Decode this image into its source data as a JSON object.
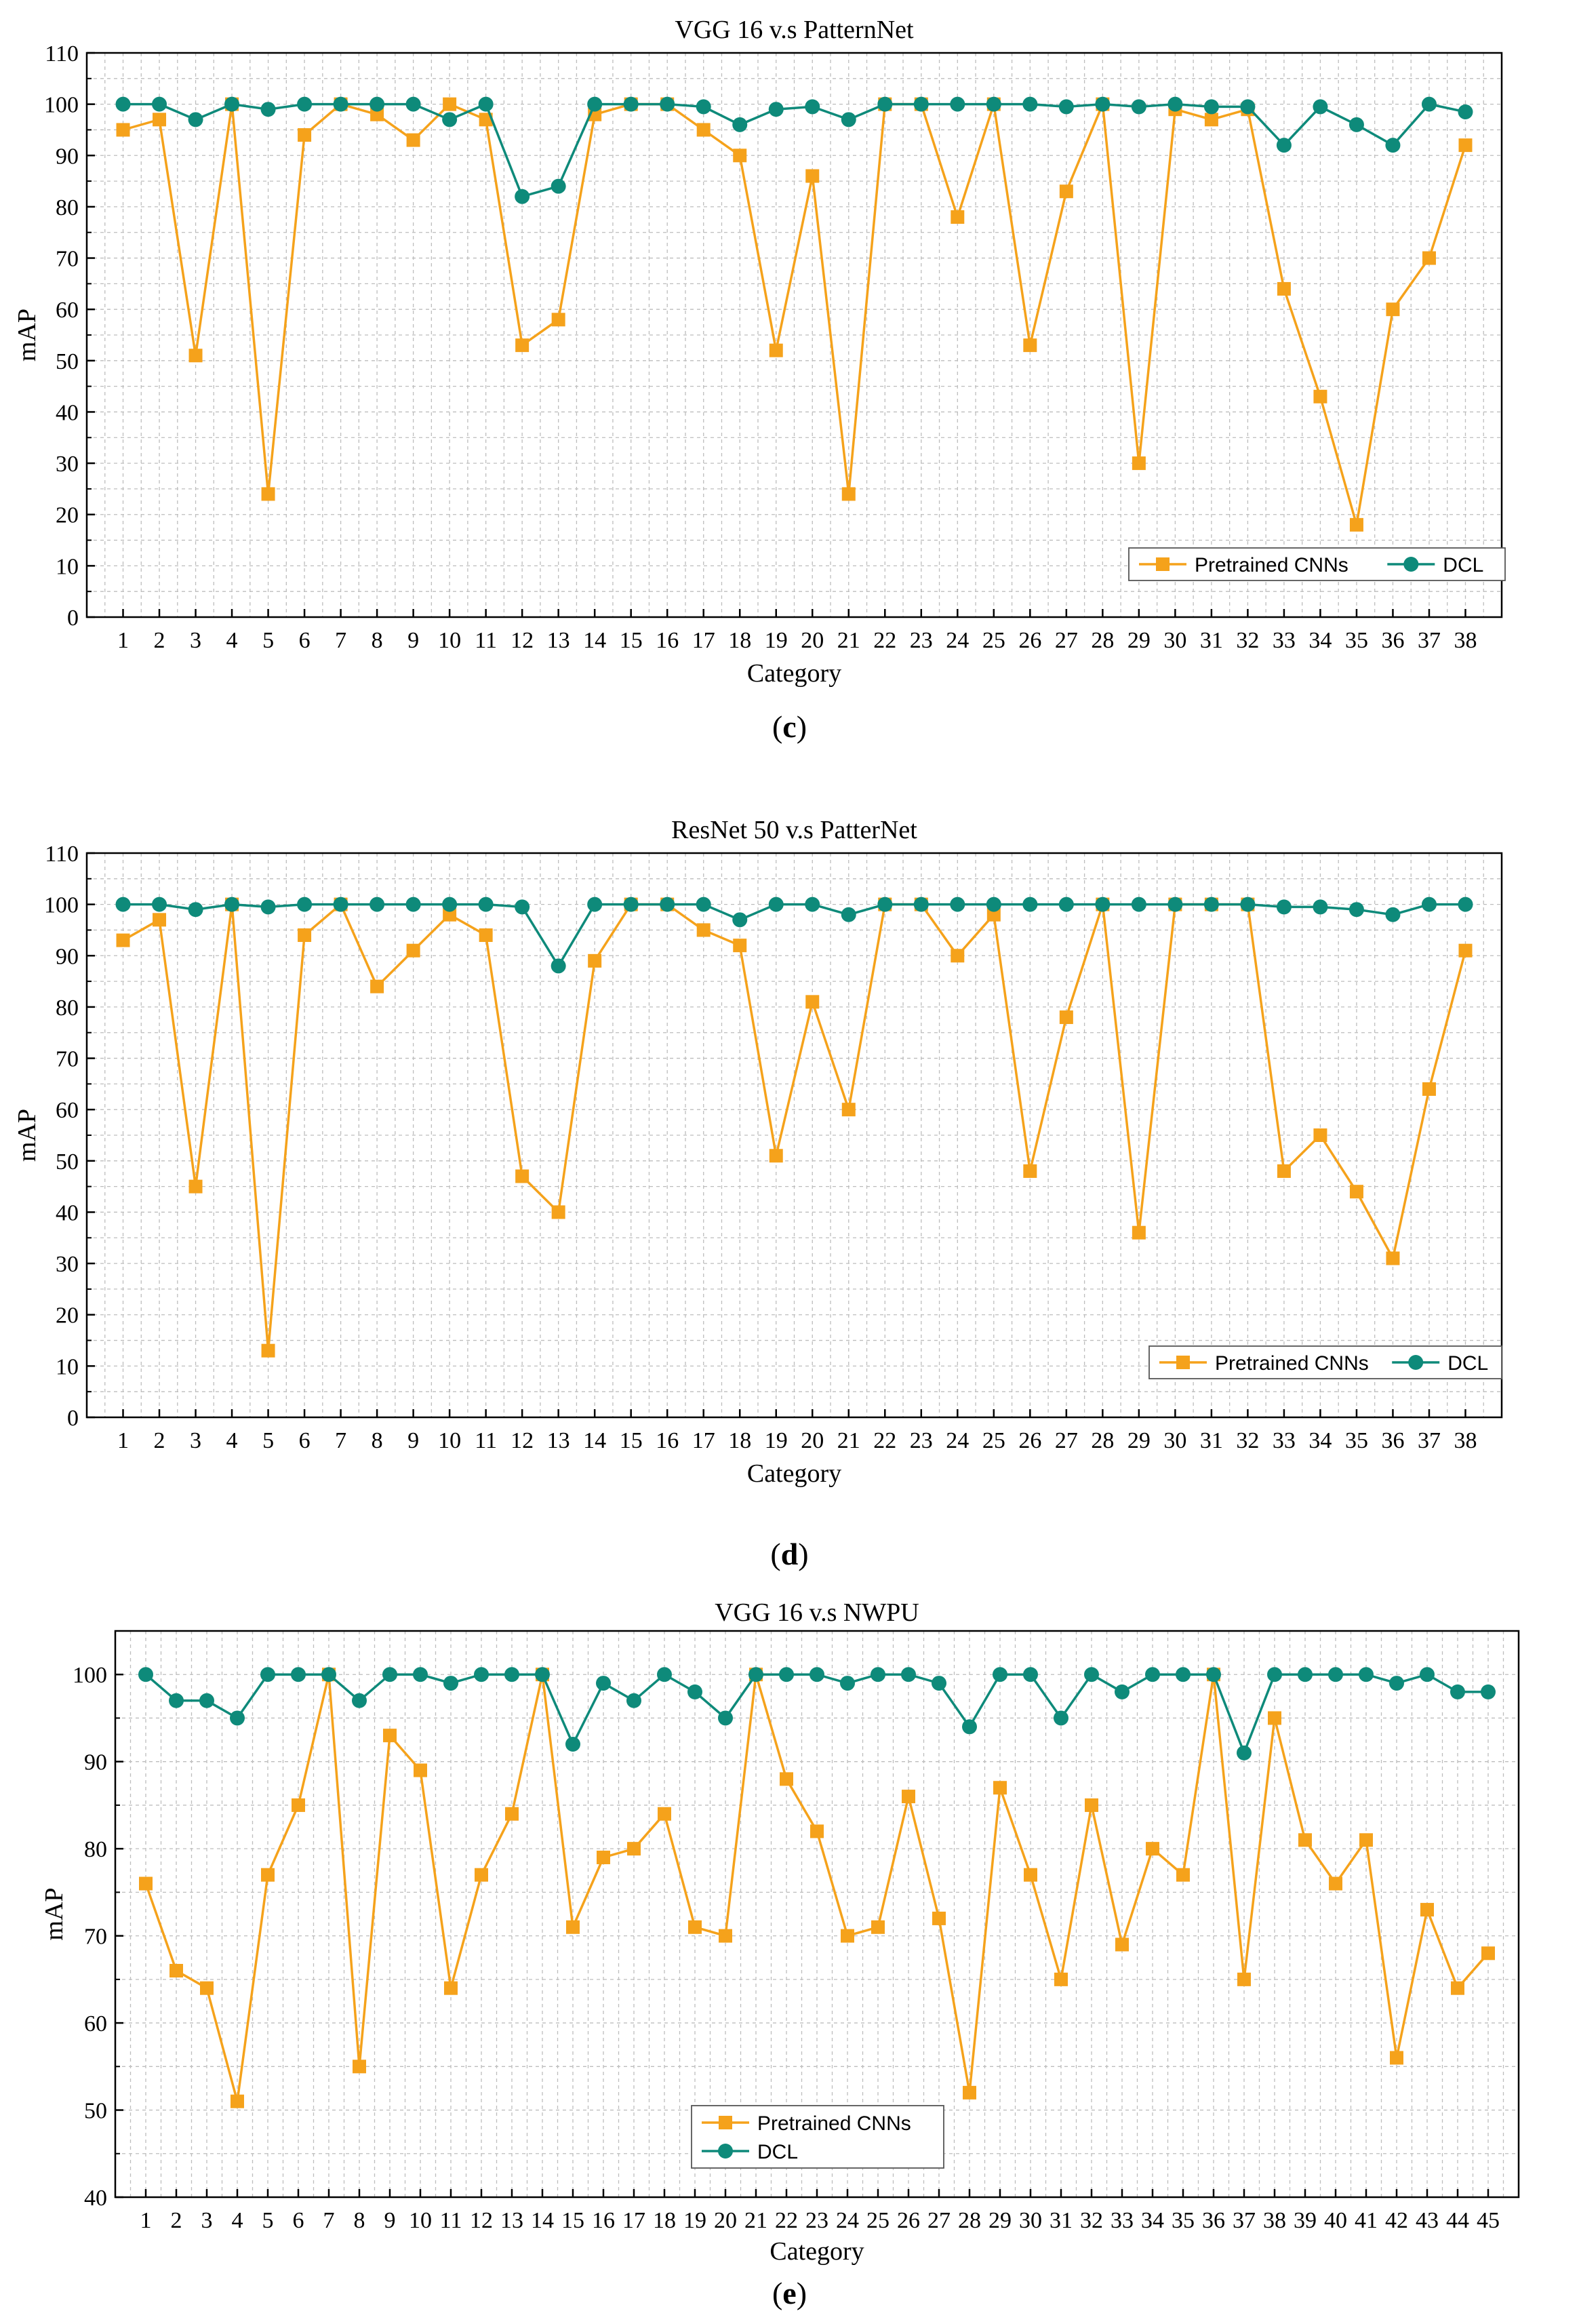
{
  "colors": {
    "pretrained": "#f5a21b",
    "dcl": "#0e8a7a",
    "grid": "#bdbdbd",
    "axis": "#000000"
  },
  "captions": [
    {
      "open": "(",
      "letter": "c",
      "close": ")"
    },
    {
      "open": "(",
      "letter": "d",
      "close": ")"
    },
    {
      "open": "(",
      "letter": "e",
      "close": ")"
    }
  ],
  "chart_data": [
    {
      "type": "line",
      "title": "VGG 16 v.s PatternNet",
      "xlabel": "Category",
      "ylabel": "mAP",
      "ylim": [
        0,
        110
      ],
      "yticks": [
        0,
        10,
        20,
        30,
        40,
        50,
        60,
        70,
        80,
        90,
        100,
        110
      ],
      "categories": [
        "1",
        "2",
        "3",
        "4",
        "5",
        "6",
        "7",
        "8",
        "9",
        "10",
        "11",
        "12",
        "13",
        "14",
        "15",
        "16",
        "17",
        "18",
        "19",
        "20",
        "21",
        "22",
        "23",
        "24",
        "25",
        "26",
        "27",
        "28",
        "29",
        "30",
        "31",
        "32",
        "33",
        "34",
        "35",
        "36",
        "37",
        "38"
      ],
      "legend": {
        "position": "bottom-right",
        "layout": "horizontal"
      },
      "series": [
        {
          "name": "Pretrained CNNs",
          "marker": "square",
          "values": [
            95,
            97,
            51,
            100,
            24,
            94,
            100,
            98,
            93,
            100,
            97,
            53,
            58,
            98,
            100,
            100,
            95,
            90,
            52,
            86,
            24,
            100,
            100,
            78,
            100,
            53,
            83,
            100,
            30,
            99,
            97,
            99,
            64,
            43,
            18,
            60,
            70,
            92
          ]
        },
        {
          "name": "DCL",
          "marker": "circle",
          "values": [
            100,
            100,
            97,
            100,
            99,
            100,
            100,
            100,
            100,
            97,
            100,
            82,
            84,
            100,
            100,
            100,
            99.5,
            96,
            99,
            99.5,
            97,
            100,
            100,
            100,
            100,
            100,
            99.5,
            100,
            99.5,
            100,
            99.5,
            99.5,
            92,
            99.5,
            96,
            92,
            100,
            98.5
          ]
        }
      ]
    },
    {
      "type": "line",
      "title": "ResNet 50 v.s PatterNet",
      "xlabel": "Category",
      "ylabel": "mAP",
      "ylim": [
        0,
        110
      ],
      "yticks": [
        0,
        10,
        20,
        30,
        40,
        50,
        60,
        70,
        80,
        90,
        100,
        110
      ],
      "categories": [
        "1",
        "2",
        "3",
        "4",
        "5",
        "6",
        "7",
        "8",
        "9",
        "10",
        "11",
        "12",
        "13",
        "14",
        "15",
        "16",
        "17",
        "18",
        "19",
        "20",
        "21",
        "22",
        "23",
        "24",
        "25",
        "26",
        "27",
        "28",
        "29",
        "30",
        "31",
        "32",
        "33",
        "34",
        "35",
        "36",
        "37",
        "38"
      ],
      "legend": {
        "position": "bottom-right",
        "layout": "horizontal"
      },
      "series": [
        {
          "name": "Pretrained CNNs",
          "marker": "square",
          "values": [
            93,
            97,
            45,
            100,
            13,
            94,
            100,
            84,
            91,
            98,
            94,
            47,
            40,
            89,
            100,
            100,
            95,
            92,
            51,
            81,
            60,
            100,
            100,
            90,
            98,
            48,
            78,
            100,
            36,
            100,
            100,
            100,
            48,
            55,
            44,
            31,
            64,
            91
          ]
        },
        {
          "name": "DCL",
          "marker": "circle",
          "values": [
            100,
            100,
            99,
            100,
            99.5,
            100,
            100,
            100,
            100,
            100,
            100,
            99.5,
            88,
            100,
            100,
            100,
            100,
            97,
            100,
            100,
            98,
            100,
            100,
            100,
            100,
            100,
            100,
            100,
            100,
            100,
            100,
            100,
            99.5,
            99.5,
            99,
            98,
            100,
            100
          ]
        }
      ]
    },
    {
      "type": "line",
      "title": "VGG 16 v.s NWPU",
      "xlabel": "Category",
      "ylabel": "mAP",
      "ylim": [
        40,
        105
      ],
      "yticks": [
        40,
        50,
        60,
        70,
        80,
        90,
        100
      ],
      "categories": [
        "1",
        "2",
        "3",
        "4",
        "5",
        "6",
        "7",
        "8",
        "9",
        "10",
        "11",
        "12",
        "13",
        "14",
        "15",
        "16",
        "17",
        "18",
        "19",
        "20",
        "21",
        "22",
        "23",
        "24",
        "25",
        "26",
        "27",
        "28",
        "29",
        "30",
        "31",
        "32",
        "33",
        "34",
        "35",
        "36",
        "37",
        "38",
        "39",
        "40",
        "41",
        "42",
        "43",
        "44",
        "45"
      ],
      "legend": {
        "position": "bottom-left",
        "layout": "vertical"
      },
      "series": [
        {
          "name": "Pretrained CNNs",
          "marker": "square",
          "values": [
            76,
            66,
            64,
            51,
            77,
            85,
            100,
            55,
            93,
            89,
            64,
            77,
            84,
            100,
            71,
            79,
            80,
            84,
            71,
            70,
            100,
            88,
            82,
            70,
            71,
            86,
            72,
            52,
            87,
            77,
            65,
            85,
            69,
            80,
            77,
            100,
            65,
            95,
            81,
            76,
            81,
            56,
            73,
            64,
            68
          ]
        },
        {
          "name": "DCL",
          "marker": "circle",
          "values": [
            100,
            97,
            97,
            95,
            100,
            100,
            100,
            97,
            100,
            100,
            99,
            100,
            100,
            100,
            92,
            99,
            97,
            100,
            98,
            95,
            100,
            100,
            100,
            99,
            100,
            100,
            99,
            94,
            100,
            100,
            95,
            100,
            98,
            100,
            100,
            100,
            91,
            100,
            100,
            100,
            100,
            99,
            100,
            98,
            98
          ]
        }
      ]
    }
  ]
}
